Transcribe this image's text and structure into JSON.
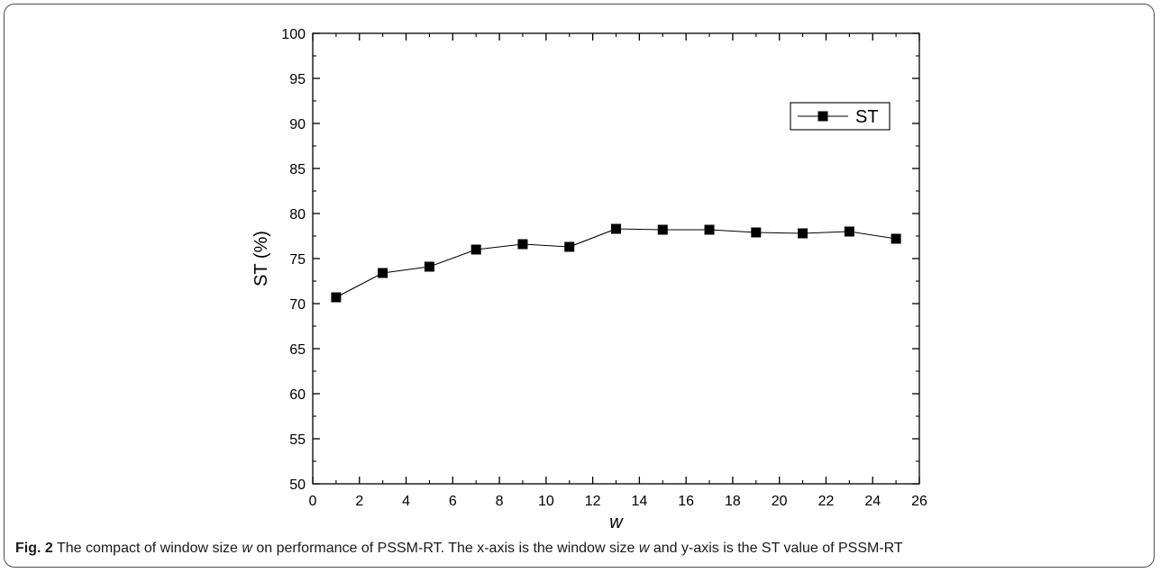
{
  "caption": {
    "label": "Fig. 2",
    "part1": " The compact of window size ",
    "var1": "w",
    "part2": " on performance of PSSM-RT. The x-axis is the window size ",
    "var2": "w",
    "part3": " and y-axis is the ST value of PSSM-RT"
  },
  "chart_data": {
    "type": "line",
    "title": "",
    "xlabel": "w",
    "ylabel": "ST (%)",
    "xlim": [
      0,
      26
    ],
    "ylim": [
      50,
      100
    ],
    "xticks": [
      0,
      2,
      4,
      6,
      8,
      10,
      12,
      14,
      16,
      18,
      20,
      22,
      24,
      26
    ],
    "yticks": [
      50,
      55,
      60,
      65,
      70,
      75,
      80,
      85,
      90,
      95,
      100
    ],
    "legend_position": "top-right",
    "grid": false,
    "series": [
      {
        "name": "ST",
        "marker": "square",
        "color": "#000000",
        "x": [
          1,
          3,
          5,
          7,
          9,
          11,
          13,
          15,
          17,
          19,
          21,
          23,
          25
        ],
        "y": [
          70.7,
          73.4,
          74.1,
          76.0,
          76.6,
          76.3,
          78.3,
          78.2,
          78.2,
          77.9,
          77.8,
          78.0,
          77.2
        ]
      }
    ]
  }
}
